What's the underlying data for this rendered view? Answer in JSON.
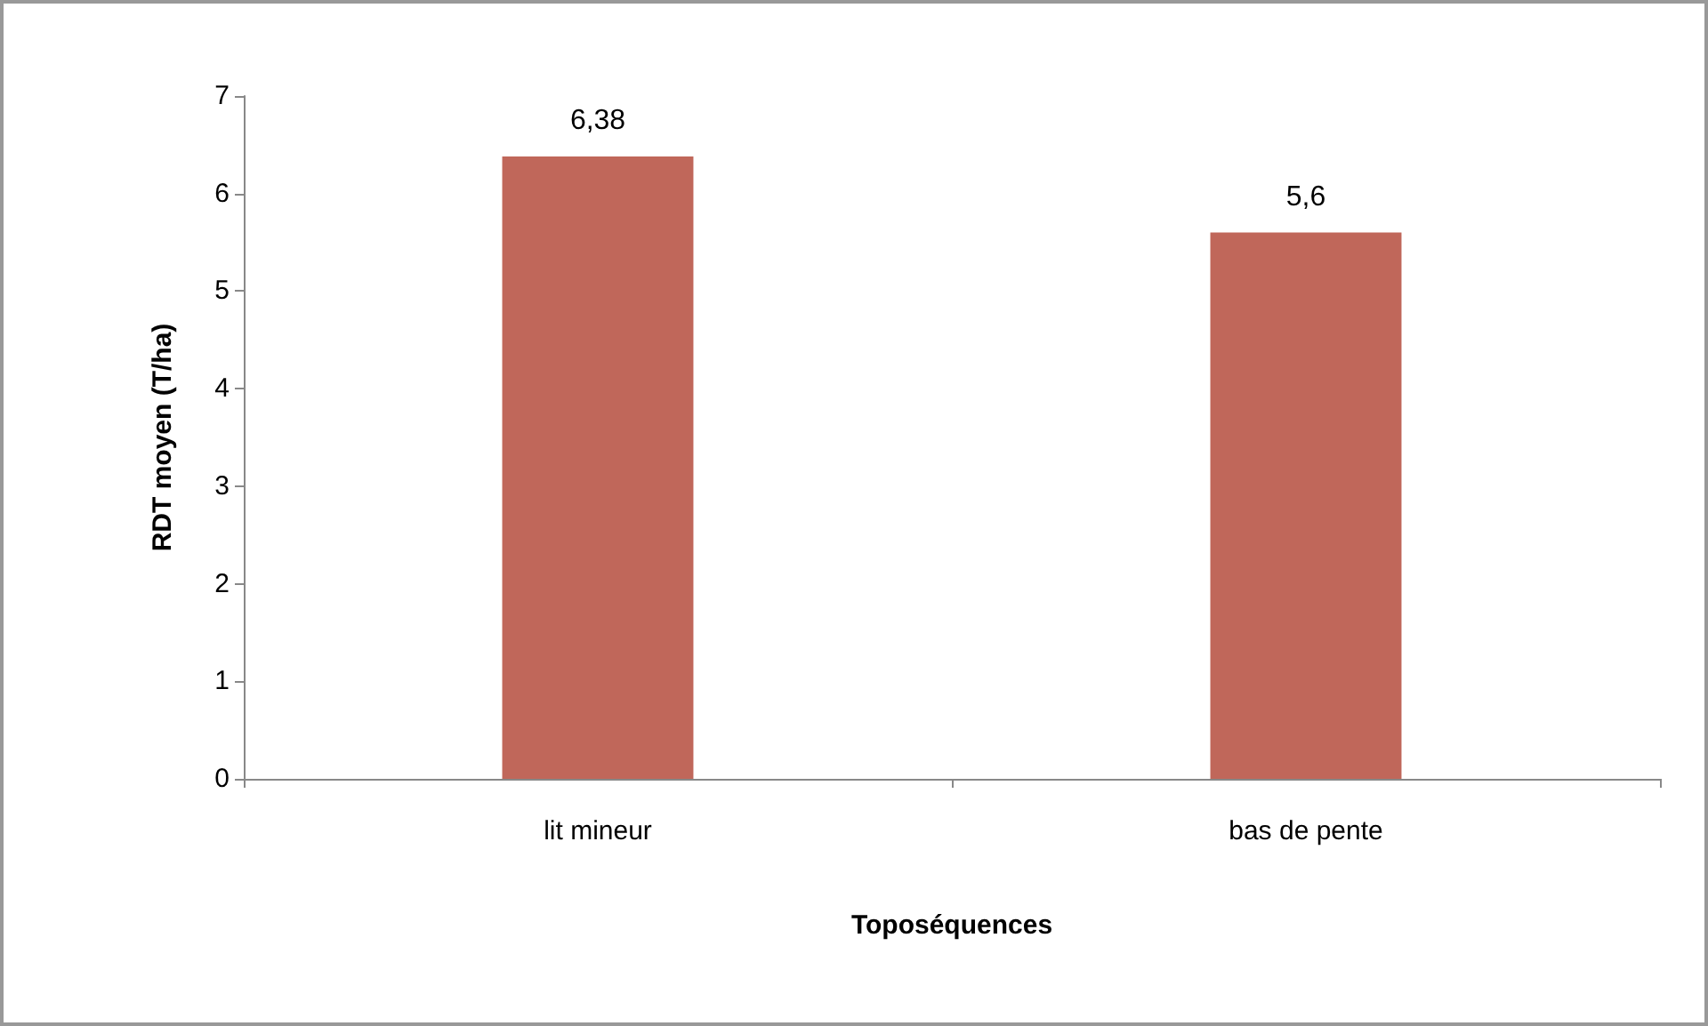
{
  "chart_data": {
    "type": "bar",
    "xlabel": "Toposéquences",
    "ylabel": "RDT moyen (T/ha)",
    "categories": [
      "lit mineur",
      "bas de pente"
    ],
    "values": [
      6.38,
      5.6
    ],
    "value_labels": [
      "6,38",
      "5,6"
    ],
    "color": "#c0675a",
    "ylim": [
      0,
      7
    ],
    "yticks": [
      0,
      1,
      2,
      3,
      4,
      5,
      6,
      7
    ],
    "grid": false
  }
}
